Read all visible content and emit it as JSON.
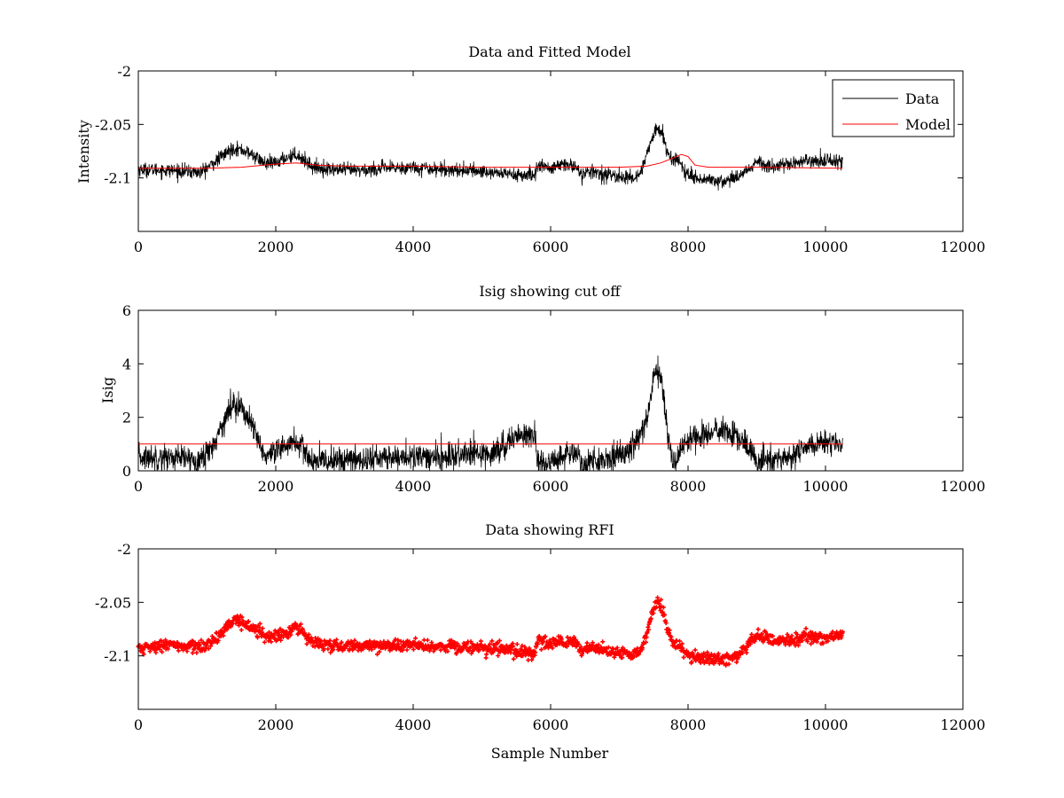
{
  "figure": {
    "background": "#ffffff"
  },
  "chart_data": [
    {
      "type": "line",
      "title": "Data and Fitted Model",
      "xlabel": "",
      "ylabel": "Intensity",
      "xlim": [
        0,
        12000
      ],
      "ylim": [
        -2.15,
        -2.0
      ],
      "xticks": [
        0,
        2000,
        4000,
        6000,
        8000,
        10000,
        12000
      ],
      "xtick_labels": [
        "0",
        "2000",
        "4000",
        "6000",
        "8000",
        "10000",
        "12000"
      ],
      "yticks": [
        -2.0,
        -2.05,
        -2.1
      ],
      "ytick_labels": [
        "-2",
        "-2.05",
        "-2.1"
      ],
      "legend": {
        "placement": "top-right",
        "entries": [
          {
            "label": "Data",
            "color": "#000000"
          },
          {
            "label": "Model",
            "color": "#ff0000"
          }
        ]
      },
      "series": [
        {
          "name": "Data",
          "color": "#000000",
          "style": "noisy-line",
          "noise": 0.006,
          "x": [
            0,
            500,
            900,
            1100,
            1250,
            1400,
            1550,
            1700,
            1850,
            2000,
            2150,
            2300,
            2450,
            2550,
            2800,
            3200,
            3600,
            4000,
            4400,
            4800,
            5200,
            5500,
            5700,
            5780,
            5800,
            6000,
            6200,
            6350,
            6450,
            6600,
            6800,
            7000,
            7200,
            7300,
            7400,
            7500,
            7560,
            7620,
            7700,
            7780,
            7850,
            7950,
            8100,
            8300,
            8500,
            8700,
            8900,
            9000,
            9100,
            9300,
            9500,
            9700,
            9900,
            10100,
            10250
          ],
          "y": [
            -2.092,
            -2.093,
            -2.095,
            -2.086,
            -2.078,
            -2.072,
            -2.075,
            -2.08,
            -2.087,
            -2.086,
            -2.081,
            -2.078,
            -2.085,
            -2.09,
            -2.092,
            -2.093,
            -2.091,
            -2.09,
            -2.092,
            -2.093,
            -2.095,
            -2.097,
            -2.098,
            -2.097,
            -2.088,
            -2.091,
            -2.088,
            -2.088,
            -2.097,
            -2.094,
            -2.097,
            -2.099,
            -2.1,
            -2.096,
            -2.078,
            -2.06,
            -2.053,
            -2.058,
            -2.075,
            -2.085,
            -2.081,
            -2.095,
            -2.099,
            -2.102,
            -2.103,
            -2.1,
            -2.09,
            -2.085,
            -2.087,
            -2.089,
            -2.088,
            -2.083,
            -2.084,
            -2.084,
            -2.085
          ]
        },
        {
          "name": "Model",
          "color": "#ff0000",
          "style": "line",
          "x": [
            0,
            500,
            1000,
            1500,
            2000,
            2300,
            2600,
            3000,
            4000,
            5000,
            6000,
            7000,
            7400,
            7600,
            7800,
            7900,
            8000,
            8100,
            8300,
            9000,
            10250
          ],
          "y": [
            -2.091,
            -2.091,
            -2.091,
            -2.09,
            -2.087,
            -2.086,
            -2.088,
            -2.089,
            -2.089,
            -2.09,
            -2.09,
            -2.09,
            -2.089,
            -2.086,
            -2.081,
            -2.078,
            -2.08,
            -2.088,
            -2.09,
            -2.09,
            -2.091
          ]
        }
      ]
    },
    {
      "type": "line",
      "title": "Isig showing cut off",
      "xlabel": "",
      "ylabel": "Isig",
      "xlim": [
        0,
        12000
      ],
      "ylim": [
        0,
        6
      ],
      "xticks": [
        0,
        2000,
        4000,
        6000,
        8000,
        10000,
        12000
      ],
      "xtick_labels": [
        "0",
        "2000",
        "4000",
        "6000",
        "8000",
        "10000",
        "12000"
      ],
      "yticks": [
        0,
        2,
        4,
        6
      ],
      "ytick_labels": [
        "0",
        "2",
        "4",
        "6"
      ],
      "series": [
        {
          "name": "Isig",
          "color": "#000000",
          "style": "noisy-line",
          "noise": 0.45,
          "x": [
            0,
            500,
            900,
            1100,
            1250,
            1400,
            1550,
            1700,
            1850,
            2000,
            2150,
            2300,
            2450,
            2550,
            2800,
            3200,
            3600,
            4000,
            4400,
            4800,
            5200,
            5500,
            5700,
            5780,
            5800,
            6000,
            6200,
            6350,
            6450,
            6600,
            6800,
            7000,
            7200,
            7300,
            7400,
            7500,
            7560,
            7620,
            7700,
            7780,
            7850,
            7950,
            8100,
            8300,
            8500,
            8700,
            8900,
            9000,
            9100,
            9300,
            9500,
            9700,
            9900,
            10100,
            10250
          ],
          "y": [
            0.5,
            0.5,
            0.4,
            1.0,
            1.9,
            2.6,
            2.2,
            1.4,
            0.5,
            0.6,
            1.0,
            1.1,
            0.6,
            0.3,
            0.4,
            0.4,
            0.5,
            0.5,
            0.5,
            0.6,
            0.7,
            1.3,
            1.4,
            1.2,
            0.3,
            0.3,
            0.6,
            0.7,
            0.2,
            0.4,
            0.4,
            0.6,
            1.0,
            1.3,
            2.0,
            3.5,
            3.7,
            3.4,
            1.5,
            0.3,
            0.5,
            1.0,
            1.3,
            1.4,
            1.5,
            1.3,
            0.8,
            0.3,
            0.4,
            0.4,
            0.5,
            0.9,
            1.0,
            1.0,
            0.9
          ]
        },
        {
          "name": "Cut off",
          "color": "#ff0000",
          "style": "line",
          "x": [
            0,
            10250
          ],
          "y": [
            1.0,
            1.0
          ]
        }
      ]
    },
    {
      "type": "scatter",
      "title": "Data showing RFI",
      "xlabel": "Sample Number",
      "ylabel": "",
      "xlim": [
        0,
        12000
      ],
      "ylim": [
        -2.15,
        -2.0
      ],
      "xticks": [
        0,
        2000,
        4000,
        6000,
        8000,
        10000,
        12000
      ],
      "xtick_labels": [
        "0",
        "2000",
        "4000",
        "6000",
        "8000",
        "10000",
        "12000"
      ],
      "yticks": [
        -2.0,
        -2.05,
        -2.1
      ],
      "ytick_labels": [
        "-2",
        "-2.05",
        "-2.1"
      ],
      "series": [
        {
          "name": "RFI",
          "color": "#ff0000",
          "style": "noisy-markers",
          "noise": 0.005,
          "x": [
            0,
            500,
            900,
            1100,
            1250,
            1400,
            1550,
            1700,
            1850,
            2000,
            2150,
            2300,
            2450,
            2550,
            2800,
            3200,
            3600,
            4000,
            4400,
            4800,
            5200,
            5500,
            5700,
            5780,
            5800,
            6000,
            6200,
            6350,
            6450,
            6600,
            6800,
            7000,
            7200,
            7300,
            7400,
            7500,
            7560,
            7620,
            7700,
            7780,
            7850,
            7950,
            8100,
            8300,
            8500,
            8700,
            8900,
            9000,
            9100,
            9300,
            9500,
            9700,
            9900,
            10100,
            10250
          ],
          "y": [
            -2.092,
            -2.09,
            -2.092,
            -2.086,
            -2.076,
            -2.066,
            -2.069,
            -2.075,
            -2.082,
            -2.081,
            -2.078,
            -2.073,
            -2.082,
            -2.088,
            -2.09,
            -2.091,
            -2.091,
            -2.09,
            -2.091,
            -2.092,
            -2.093,
            -2.096,
            -2.097,
            -2.097,
            -2.085,
            -2.088,
            -2.087,
            -2.086,
            -2.095,
            -2.092,
            -2.095,
            -2.097,
            -2.099,
            -2.096,
            -2.08,
            -2.055,
            -2.048,
            -2.055,
            -2.075,
            -2.088,
            -2.09,
            -2.098,
            -2.101,
            -2.103,
            -2.104,
            -2.1,
            -2.088,
            -2.081,
            -2.083,
            -2.086,
            -2.086,
            -2.081,
            -2.083,
            -2.082,
            -2.083
          ]
        }
      ]
    }
  ]
}
